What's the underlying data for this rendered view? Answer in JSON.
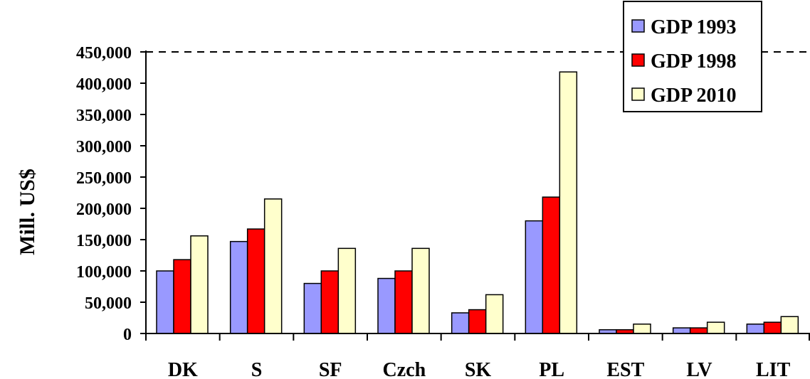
{
  "chart_data": {
    "type": "bar",
    "title": "",
    "xlabel": "",
    "ylabel": "Mill. US$",
    "ylim": [
      0,
      450000
    ],
    "y_ticks": [
      "0",
      "50,000",
      "100,000",
      "150,000",
      "200,000",
      "250,000",
      "300,000",
      "350,000",
      "400,000",
      "450,000"
    ],
    "categories": [
      "DK",
      "S",
      "SF",
      "Czch",
      "SK",
      "PL",
      "EST",
      "LV",
      "LIT"
    ],
    "series": [
      {
        "name": "GDP 1993",
        "color": "#9999ff",
        "values": [
          100000,
          147000,
          80000,
          88000,
          33000,
          180000,
          6000,
          9000,
          15000
        ]
      },
      {
        "name": "GDP 1998",
        "color": "#ff0000",
        "values": [
          118000,
          167000,
          100000,
          100000,
          38000,
          218000,
          6000,
          9000,
          18000
        ]
      },
      {
        "name": "GDP 2010",
        "color": "#ffffcc",
        "values": [
          156000,
          215000,
          136000,
          136000,
          62000,
          418000,
          15000,
          18000,
          27000
        ]
      }
    ],
    "reference_line": {
      "value": 450000,
      "style": "dashed"
    },
    "legend_position": "top-right",
    "grid": false
  }
}
